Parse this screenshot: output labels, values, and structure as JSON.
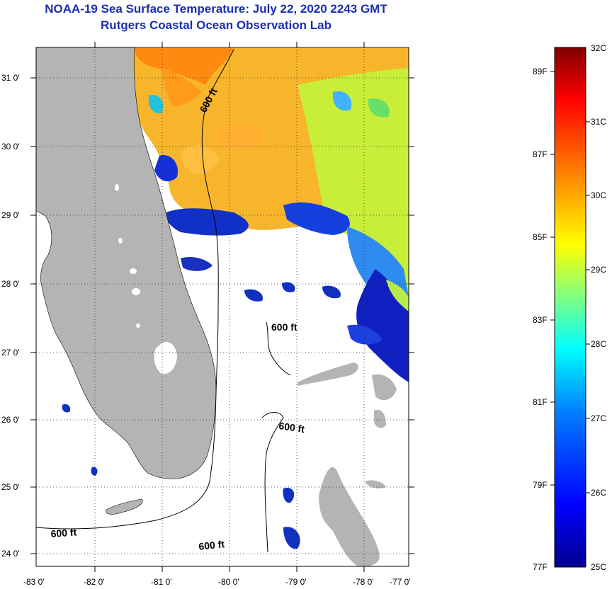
{
  "title": {
    "line1": "NOAA-19 Sea Surface Temperature:  July 22, 2020 2243 GMT",
    "line2": "Rutgers Coastal Ocean Observation Lab"
  },
  "map": {
    "lon_ticks": [
      "-83 0'",
      "-82 0'",
      "-81 0'",
      "-80 0'",
      "-79 0'",
      "-78 0'",
      "-77 0'"
    ],
    "lat_ticks": [
      "31 0'",
      "30 0'",
      "29 0'",
      "28 0'",
      "27 0'",
      "26 0'",
      "25 0'",
      "24 0'"
    ],
    "contour_label": "600 ft",
    "colors": {
      "land": "#b4b4b4",
      "frame": "#000000"
    }
  },
  "colorbar": {
    "celsius": [
      "32C",
      "31C",
      "30C",
      "29C",
      "28C",
      "27C",
      "26C",
      "25C"
    ],
    "fahrenheit": [
      "89F",
      "87F",
      "85F",
      "83F",
      "81F",
      "79F",
      "77F"
    ],
    "range_c": [
      25,
      32
    ],
    "gradient": [
      "#00008f",
      "#0000ff",
      "#0080ff",
      "#00ffff",
      "#80ff80",
      "#ffff00",
      "#ff8000",
      "#ff0000",
      "#800000"
    ]
  }
}
